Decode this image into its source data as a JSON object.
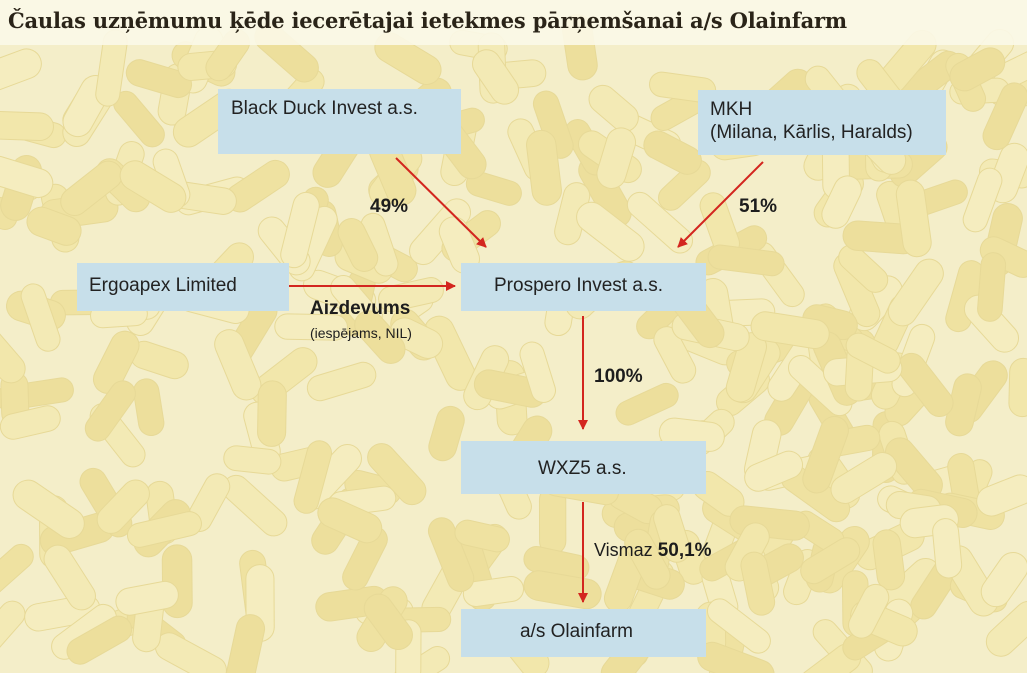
{
  "title": "Čaulas uzņēmumu ķēde iecerētajai ietekmes pārņemšanai a/s Olainfarm",
  "entities": {
    "black_duck": "Black Duck Invest a.s.",
    "mkh": "MKH",
    "mkh_members": "(Milana, Kārlis, Haralds)",
    "ergoapex": "Ergoapex Limited",
    "prospero": "Prospero Invest a.s.",
    "wxz5": "WXZ5 a.s.",
    "olainfarm": "a/s Olainfarm"
  },
  "links": {
    "black_duck_to_prospero": "49%",
    "mkh_to_prospero": "51%",
    "ergoapex_to_prospero_label": "Aizdevums",
    "ergoapex_to_prospero_note": "(iespējams, NIL)",
    "prospero_to_wxz5": "100%",
    "wxz5_to_olainfarm_prefix": "Vismaz",
    "wxz5_to_olainfarm_value": "50,1%"
  },
  "colors": {
    "box_fill": "#c7dfea",
    "arrow": "#d3261f",
    "background": "#f6f1d2"
  }
}
